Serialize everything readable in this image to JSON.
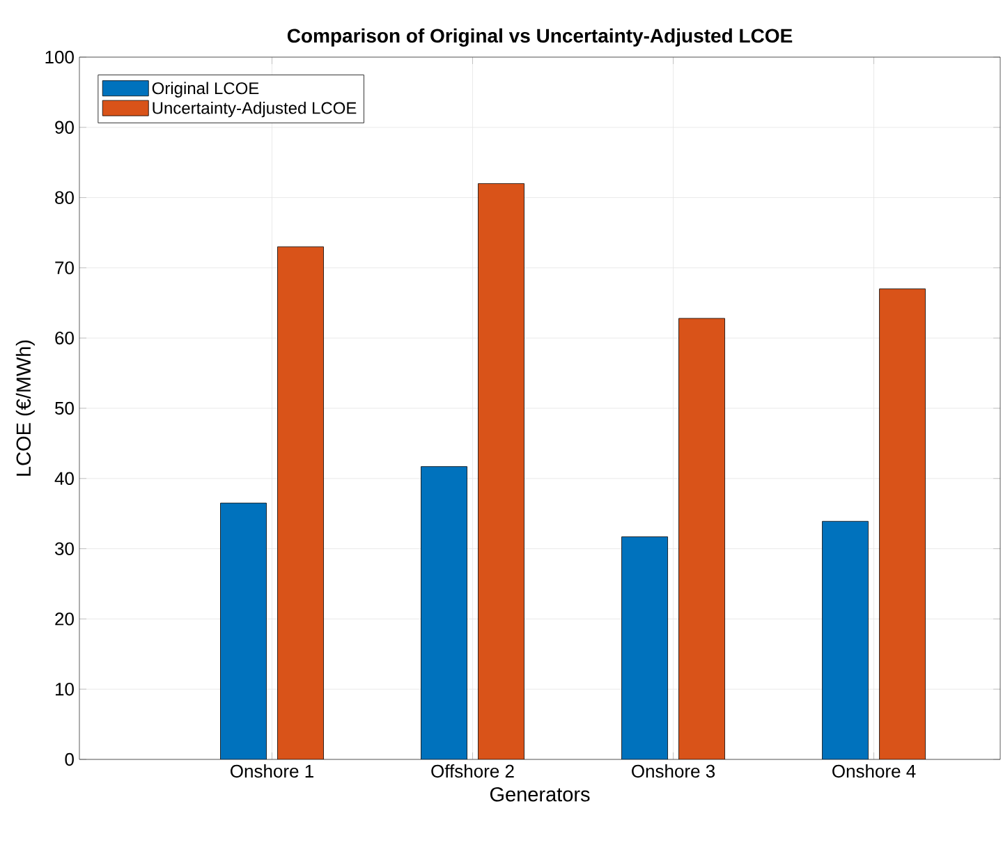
{
  "chart_data": {
    "type": "bar",
    "title": "Comparison of Original vs Uncertainty-Adjusted LCOE",
    "xlabel": "Generators",
    "ylabel": "LCOE (€/MWh)",
    "categories": [
      "Onshore 1",
      "Offshore 2",
      "Onshore 3",
      "Onshore 4"
    ],
    "series": [
      {
        "name": "Original LCOE",
        "color": "#0072bd",
        "values": [
          36.5,
          41.7,
          31.7,
          33.9
        ]
      },
      {
        "name": "Uncertainty-Adjusted LCOE",
        "color": "#d95319",
        "values": [
          73,
          82,
          62.8,
          67
        ]
      }
    ],
    "ylim": [
      0,
      100
    ],
    "yticks": [
      0,
      10,
      20,
      30,
      40,
      50,
      60,
      70,
      80,
      90,
      100
    ],
    "grid": true,
    "legend": "top left"
  }
}
